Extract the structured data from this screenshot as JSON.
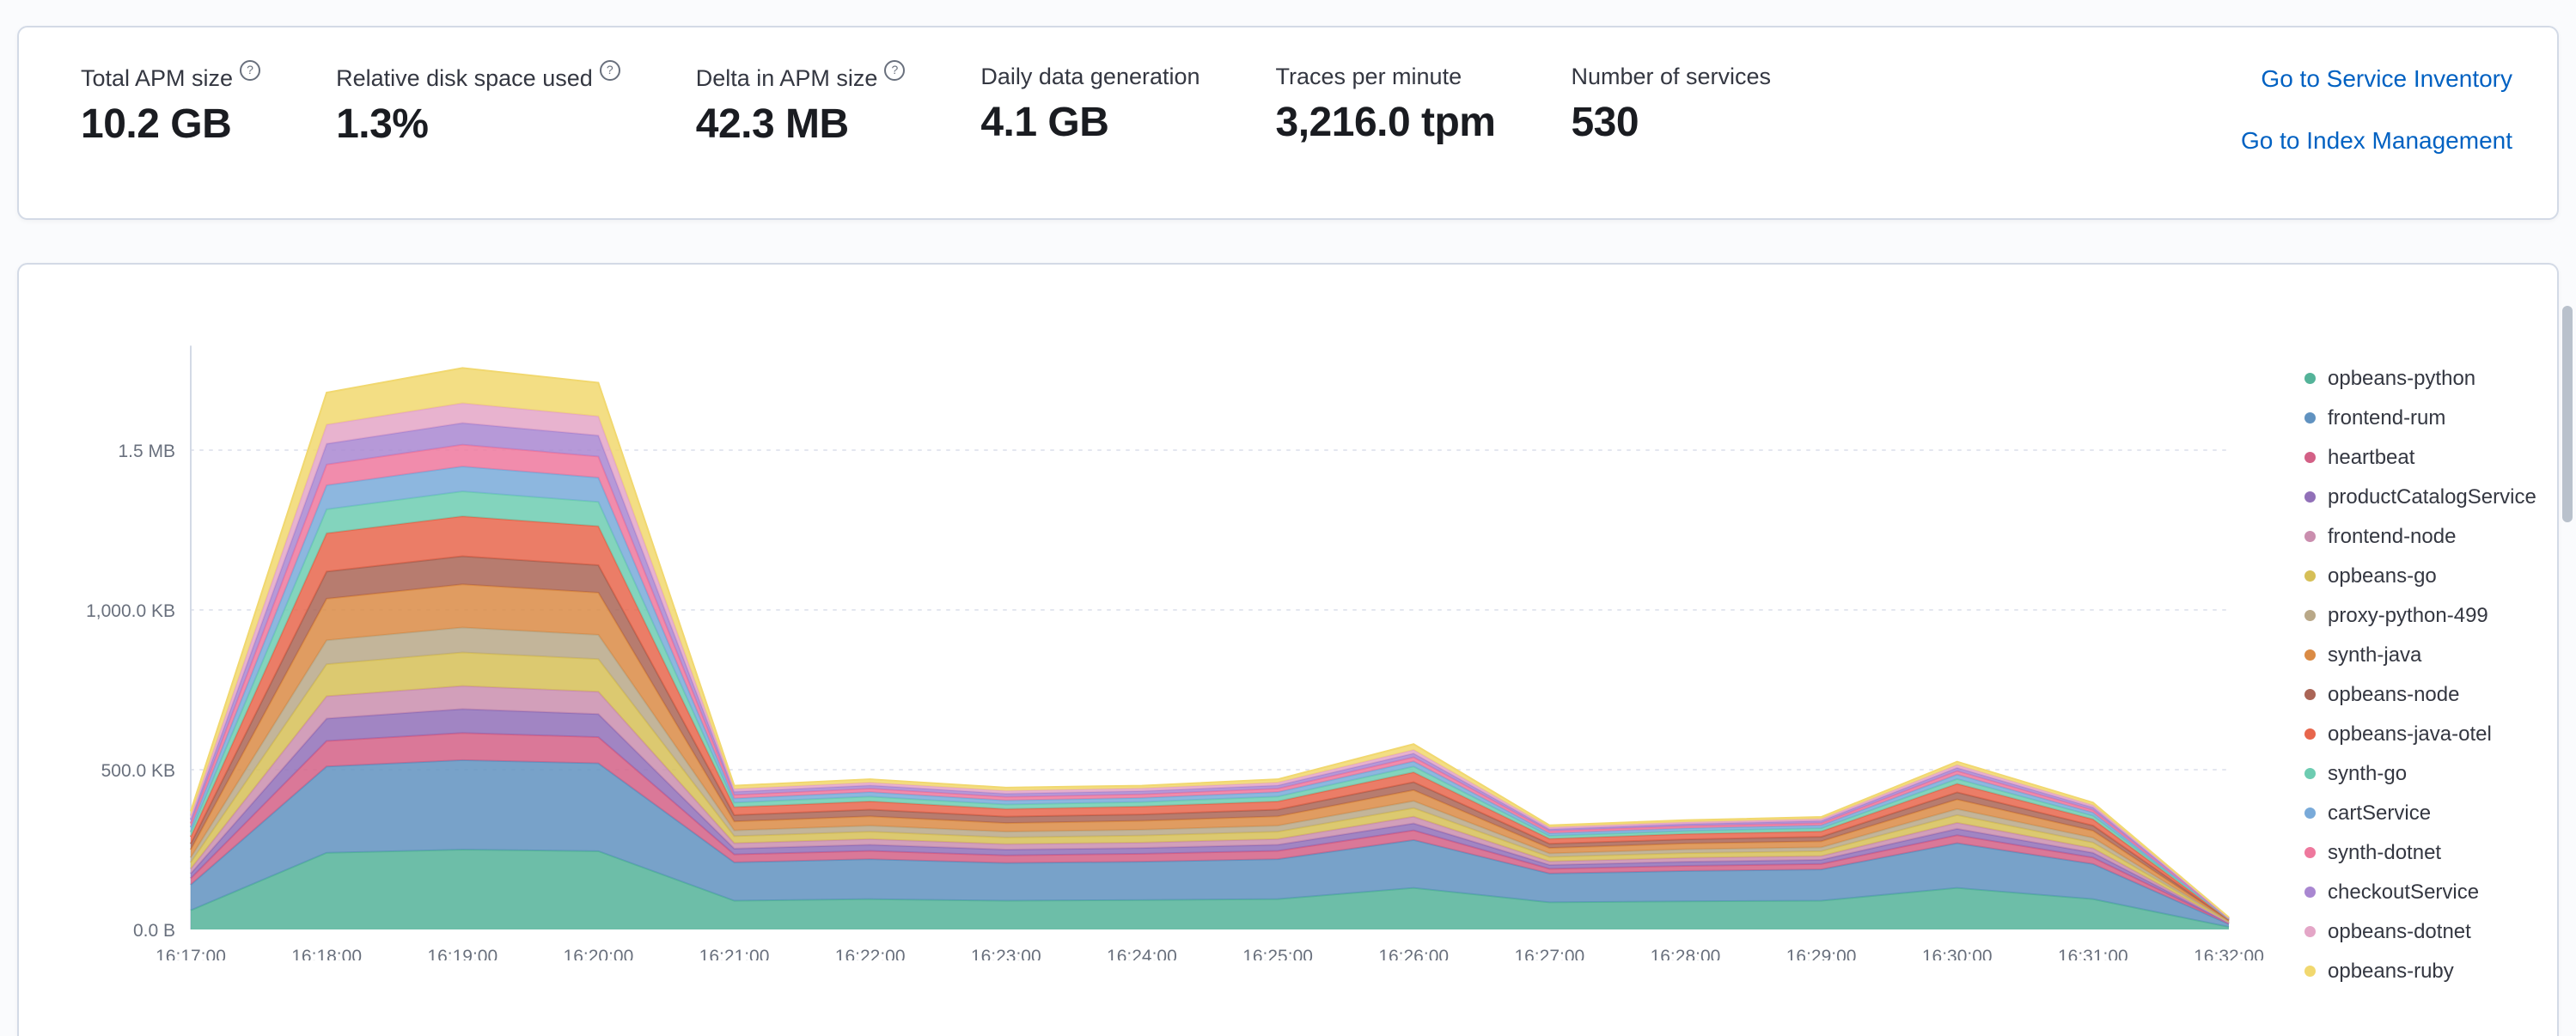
{
  "icons": {
    "question": "?"
  },
  "summary": {
    "metrics": [
      {
        "label": "Total APM size",
        "value": "10.2 GB",
        "has_info": true
      },
      {
        "label": "Relative disk space used",
        "value": "1.3%",
        "has_info": true
      },
      {
        "label": "Delta in APM size",
        "value": "42.3 MB",
        "has_info": true
      },
      {
        "label": "Daily data generation",
        "value": "4.1 GB",
        "has_info": false
      },
      {
        "label": "Traces per minute",
        "value": "3,216.0 tpm",
        "has_info": false
      },
      {
        "label": "Number of services",
        "value": "530",
        "has_info": false
      }
    ],
    "links": [
      {
        "label": "Go to Service Inventory"
      },
      {
        "label": "Go to Index Management"
      }
    ]
  },
  "chart_data": {
    "type": "area",
    "stacked": true,
    "title": "",
    "xlabel": "",
    "ylabel": "",
    "y_unit": "KB",
    "ylim": [
      0,
      1800
    ],
    "grid": "dashed-horizontal",
    "legend_position": "right",
    "x": [
      "16:17:00",
      "16:18:00",
      "16:19:00",
      "16:20:00",
      "16:21:00",
      "16:22:00",
      "16:23:00",
      "16:24:00",
      "16:25:00",
      "16:26:00",
      "16:27:00",
      "16:28:00",
      "16:29:00",
      "16:30:00",
      "16:31:00",
      "16:32:00"
    ],
    "y_ticks": [
      {
        "label": "0.0 B",
        "value": 0
      },
      {
        "label": "500.0 KB",
        "value": 500
      },
      {
        "label": "1,000.0 KB",
        "value": 1000
      },
      {
        "label": "1.5 MB",
        "value": 1500
      }
    ],
    "series": [
      {
        "name": "opbeans-python",
        "color": "#54B399",
        "values": [
          60,
          240,
          250,
          245,
          90,
          95,
          90,
          92,
          95,
          130,
          85,
          88,
          90,
          130,
          95,
          8
        ]
      },
      {
        "name": "frontend-rum",
        "color": "#6092C0",
        "values": [
          80,
          270,
          280,
          275,
          120,
          125,
          118,
          120,
          125,
          150,
          90,
          95,
          98,
          140,
          110,
          9
        ]
      },
      {
        "name": "heartbeat",
        "color": "#D36086",
        "values": [
          20,
          80,
          85,
          82,
          25,
          26,
          24,
          25,
          26,
          30,
          15,
          16,
          17,
          25,
          20,
          2
        ]
      },
      {
        "name": "productCatalogService",
        "color": "#9170B8",
        "values": [
          15,
          70,
          75,
          72,
          18,
          19,
          18,
          18,
          19,
          22,
          12,
          13,
          13,
          20,
          15,
          1.5
        ]
      },
      {
        "name": "frontend-node",
        "color": "#CA8EAE",
        "values": [
          15,
          70,
          72,
          70,
          17,
          18,
          17,
          17,
          18,
          21,
          11,
          12,
          12,
          19,
          14,
          1.5
        ]
      },
      {
        "name": "opbeans-go",
        "color": "#D6BF57",
        "values": [
          20,
          100,
          105,
          102,
          22,
          23,
          21,
          22,
          23,
          27,
          14,
          15,
          15,
          24,
          18,
          2
        ]
      },
      {
        "name": "proxy-python-499",
        "color": "#B9A888",
        "values": [
          15,
          75,
          78,
          76,
          18,
          19,
          18,
          18,
          19,
          22,
          11,
          12,
          12,
          19,
          15,
          1.5
        ]
      },
      {
        "name": "synth-java",
        "color": "#DA8B45",
        "values": [
          25,
          130,
          135,
          132,
          28,
          29,
          27,
          28,
          29,
          34,
          17,
          18,
          19,
          30,
          22,
          2.5
        ]
      },
      {
        "name": "opbeans-node",
        "color": "#AA6556",
        "values": [
          18,
          85,
          88,
          86,
          20,
          21,
          20,
          20,
          21,
          25,
          13,
          13,
          14,
          22,
          16,
          2
        ]
      },
      {
        "name": "opbeans-java-otel",
        "color": "#E7664C",
        "values": [
          22,
          120,
          125,
          122,
          25,
          26,
          24,
          25,
          26,
          31,
          16,
          17,
          17,
          27,
          20,
          2
        ]
      },
      {
        "name": "synth-go",
        "color": "#6DCCB1",
        "values": [
          15,
          75,
          78,
          76,
          14,
          15,
          14,
          14,
          15,
          18,
          9,
          9,
          10,
          15,
          11,
          1
        ]
      },
      {
        "name": "cartService",
        "color": "#79AAD9",
        "values": [
          15,
          75,
          78,
          76,
          13,
          14,
          13,
          13,
          14,
          16,
          8,
          9,
          9,
          14,
          10,
          1
        ]
      },
      {
        "name": "synth-dotnet",
        "color": "#EE789D",
        "values": [
          12,
          65,
          68,
          66,
          11,
          11,
          11,
          11,
          11,
          13,
          7,
          7,
          7,
          11,
          8,
          1
        ]
      },
      {
        "name": "checkoutService",
        "color": "#A987D1",
        "values": [
          12,
          65,
          68,
          66,
          10,
          10,
          10,
          10,
          10,
          12,
          6,
          6,
          7,
          10,
          8,
          1
        ]
      },
      {
        "name": "opbeans-dotnet",
        "color": "#E4A6C7",
        "values": [
          12,
          60,
          62,
          60,
          9,
          9,
          9,
          9,
          9,
          11,
          6,
          6,
          6,
          9,
          7,
          1
        ]
      },
      {
        "name": "opbeans-ruby",
        "color": "#F1D86F",
        "values": [
          14,
          100,
          110,
          105,
          10,
          10,
          10,
          8,
          10,
          18,
          6,
          6,
          6,
          10,
          8,
          1
        ]
      }
    ]
  }
}
